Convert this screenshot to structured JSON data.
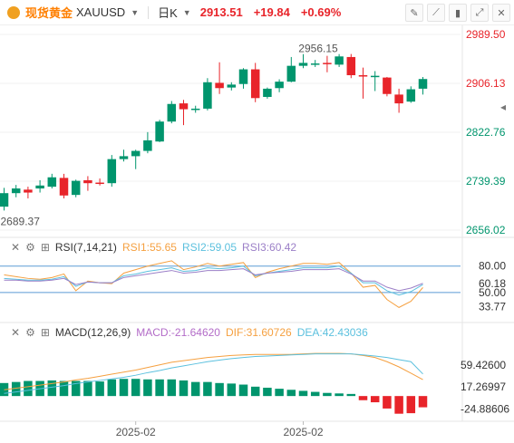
{
  "header": {
    "name": "现货黄金",
    "symbol": "XAUUSD",
    "period": "日K",
    "price": "2913.51",
    "change": "+19.84",
    "change_pct": "+0.69%",
    "up_color": "#e8242a",
    "down_color": "#00956d",
    "tools": [
      "draw-icon",
      "ruler-icon",
      "bars-icon",
      "expand-icon",
      "close-icon"
    ]
  },
  "rsi_panel": {
    "title": "RSI(7,14,21)",
    "rsi1": "RSI1:55.65",
    "rsi2": "RSI2:59.05",
    "rsi3": "RSI3:60.42",
    "colors": {
      "rsi1": "#f5a040",
      "rsi2": "#5bc0de",
      "rsi3": "#9b7fc7"
    }
  },
  "macd_panel": {
    "title": "MACD(12,26,9)",
    "macd": "MACD:-21.64620",
    "dif": "DIF:31.60726",
    "dea": "DEA:42.43036",
    "colors": {
      "macd": "#b36cc8",
      "dif": "#f5a040",
      "dea": "#5bc0de"
    }
  },
  "x_axis": {
    "labels": [
      "2025-02",
      "2025-02"
    ]
  },
  "chart_data": [
    {
      "type": "candlestick",
      "title": "现货黄金 XAUUSD 日K",
      "ylim": [
        2656.02,
        2989.5
      ],
      "y_ticks": [
        "2989.50",
        "2906.13",
        "2822.76",
        "2739.39",
        "2656.02"
      ],
      "annotations": {
        "high": "2956.15",
        "low": "2689.37"
      },
      "candles": [
        {
          "o": 2696,
          "h": 2728,
          "l": 2689.37,
          "c": 2719
        },
        {
          "o": 2719,
          "h": 2733,
          "l": 2712,
          "c": 2727
        },
        {
          "o": 2725,
          "h": 2730,
          "l": 2710,
          "c": 2720
        },
        {
          "o": 2727,
          "h": 2741,
          "l": 2720,
          "c": 2732
        },
        {
          "o": 2730,
          "h": 2752,
          "l": 2727,
          "c": 2746
        },
        {
          "o": 2745,
          "h": 2752,
          "l": 2710,
          "c": 2715
        },
        {
          "o": 2716,
          "h": 2742,
          "l": 2712,
          "c": 2740
        },
        {
          "o": 2741,
          "h": 2748,
          "l": 2723,
          "c": 2736
        },
        {
          "o": 2737,
          "h": 2744,
          "l": 2732,
          "c": 2736
        },
        {
          "o": 2736,
          "h": 2784,
          "l": 2730,
          "c": 2777
        },
        {
          "o": 2777,
          "h": 2793,
          "l": 2773,
          "c": 2782
        },
        {
          "o": 2782,
          "h": 2793,
          "l": 2760,
          "c": 2791
        },
        {
          "o": 2791,
          "h": 2823,
          "l": 2787,
          "c": 2809
        },
        {
          "o": 2807,
          "h": 2844,
          "l": 2806,
          "c": 2841
        },
        {
          "o": 2841,
          "h": 2876,
          "l": 2838,
          "c": 2871
        },
        {
          "o": 2872,
          "h": 2878,
          "l": 2835,
          "c": 2862
        },
        {
          "o": 2862,
          "h": 2868,
          "l": 2856,
          "c": 2863
        },
        {
          "o": 2863,
          "h": 2915,
          "l": 2860,
          "c": 2908
        },
        {
          "o": 2907,
          "h": 2942,
          "l": 2888,
          "c": 2898
        },
        {
          "o": 2899,
          "h": 2908,
          "l": 2894,
          "c": 2904
        },
        {
          "o": 2905,
          "h": 2932,
          "l": 2897,
          "c": 2930
        },
        {
          "o": 2930,
          "h": 2941,
          "l": 2874,
          "c": 2881
        },
        {
          "o": 2883,
          "h": 2899,
          "l": 2880,
          "c": 2897
        },
        {
          "o": 2898,
          "h": 2913,
          "l": 2891,
          "c": 2909
        },
        {
          "o": 2909,
          "h": 2951,
          "l": 2908,
          "c": 2936
        },
        {
          "o": 2936,
          "h": 2956,
          "l": 2932,
          "c": 2941
        },
        {
          "o": 2940,
          "h": 2946,
          "l": 2934,
          "c": 2940
        },
        {
          "o": 2941,
          "h": 2953,
          "l": 2925,
          "c": 2939
        },
        {
          "o": 2938,
          "h": 2956,
          "l": 2934,
          "c": 2952
        },
        {
          "o": 2951,
          "h": 2956.15,
          "l": 2915,
          "c": 2920
        },
        {
          "o": 2920,
          "h": 2933,
          "l": 2880,
          "c": 2918
        },
        {
          "o": 2917,
          "h": 2927,
          "l": 2893,
          "c": 2919
        },
        {
          "o": 2916,
          "h": 2917,
          "l": 2884,
          "c": 2888
        },
        {
          "o": 2887,
          "h": 2897,
          "l": 2856,
          "c": 2872
        },
        {
          "o": 2875,
          "h": 2901,
          "l": 2873,
          "c": 2896
        },
        {
          "o": 2897,
          "h": 2917,
          "l": 2887,
          "c": 2913.51
        }
      ]
    },
    {
      "type": "line",
      "title": "RSI(7,14,21)",
      "ylim": [
        20,
        90
      ],
      "y_ticks": [
        "80.00",
        "60.18",
        "50.00",
        "33.77"
      ],
      "reference_lines": [
        80.0,
        50.0
      ],
      "series": [
        {
          "name": "RSI1",
          "values": [
            70,
            68,
            66,
            65,
            67,
            71,
            52,
            63,
            61,
            60,
            72,
            76,
            80,
            83,
            86,
            76,
            79,
            83,
            80,
            82,
            84,
            67,
            73,
            77,
            80,
            83,
            83,
            82,
            84,
            72,
            56,
            58,
            42,
            33,
            40,
            55.65
          ]
        },
        {
          "name": "RSI2",
          "values": [
            66,
            65,
            64,
            64,
            65,
            68,
            57,
            62,
            61,
            61,
            69,
            71,
            74,
            76,
            78,
            74,
            75,
            78,
            77,
            78,
            80,
            69,
            72,
            74,
            76,
            78,
            78,
            78,
            80,
            72,
            61,
            61,
            52,
            47,
            51,
            59.05
          ]
        },
        {
          "name": "RSI3",
          "values": [
            64,
            64,
            63,
            63,
            64,
            66,
            59,
            62,
            61,
            61,
            67,
            69,
            71,
            73,
            75,
            72,
            73,
            75,
            75,
            76,
            77,
            70,
            72,
            73,
            74,
            76,
            76,
            76,
            77,
            71,
            63,
            63,
            56,
            52,
            55,
            60.42
          ]
        }
      ]
    },
    {
      "type": "bar",
      "title": "MACD(12,26,9)",
      "ylim": [
        -45,
        110
      ],
      "y_ticks": [
        "59.42600",
        "17.26997",
        "-24.88606"
      ],
      "series": [
        {
          "name": "MACD",
          "values": [
            25,
            27,
            29,
            29,
            30,
            29,
            29,
            29,
            28,
            32,
            33,
            33,
            32,
            32,
            32,
            30,
            27,
            27,
            25,
            24,
            22,
            18,
            16,
            14,
            12,
            10,
            8,
            6,
            5,
            4,
            -8,
            -12,
            -24,
            -34,
            -33,
            -21.6462
          ]
        },
        {
          "name": "DIF",
          "values": [
            12,
            15,
            18,
            21,
            24,
            27,
            31,
            34,
            38,
            42,
            46,
            50,
            55,
            60,
            65,
            68,
            71,
            74,
            76,
            78,
            79,
            80,
            80,
            80,
            80,
            81,
            82,
            82,
            82,
            81,
            78,
            74,
            66,
            56,
            44,
            31.60726
          ]
        },
        {
          "name": "DEA",
          "values": [
            5,
            8,
            11,
            14,
            17,
            20,
            24,
            27,
            30,
            33,
            36,
            40,
            45,
            49,
            54,
            58,
            62,
            66,
            69,
            72,
            74,
            76,
            77,
            78,
            79,
            80,
            81,
            81,
            81,
            81,
            79,
            77,
            74,
            70,
            66,
            42.43036
          ]
        }
      ]
    }
  ]
}
